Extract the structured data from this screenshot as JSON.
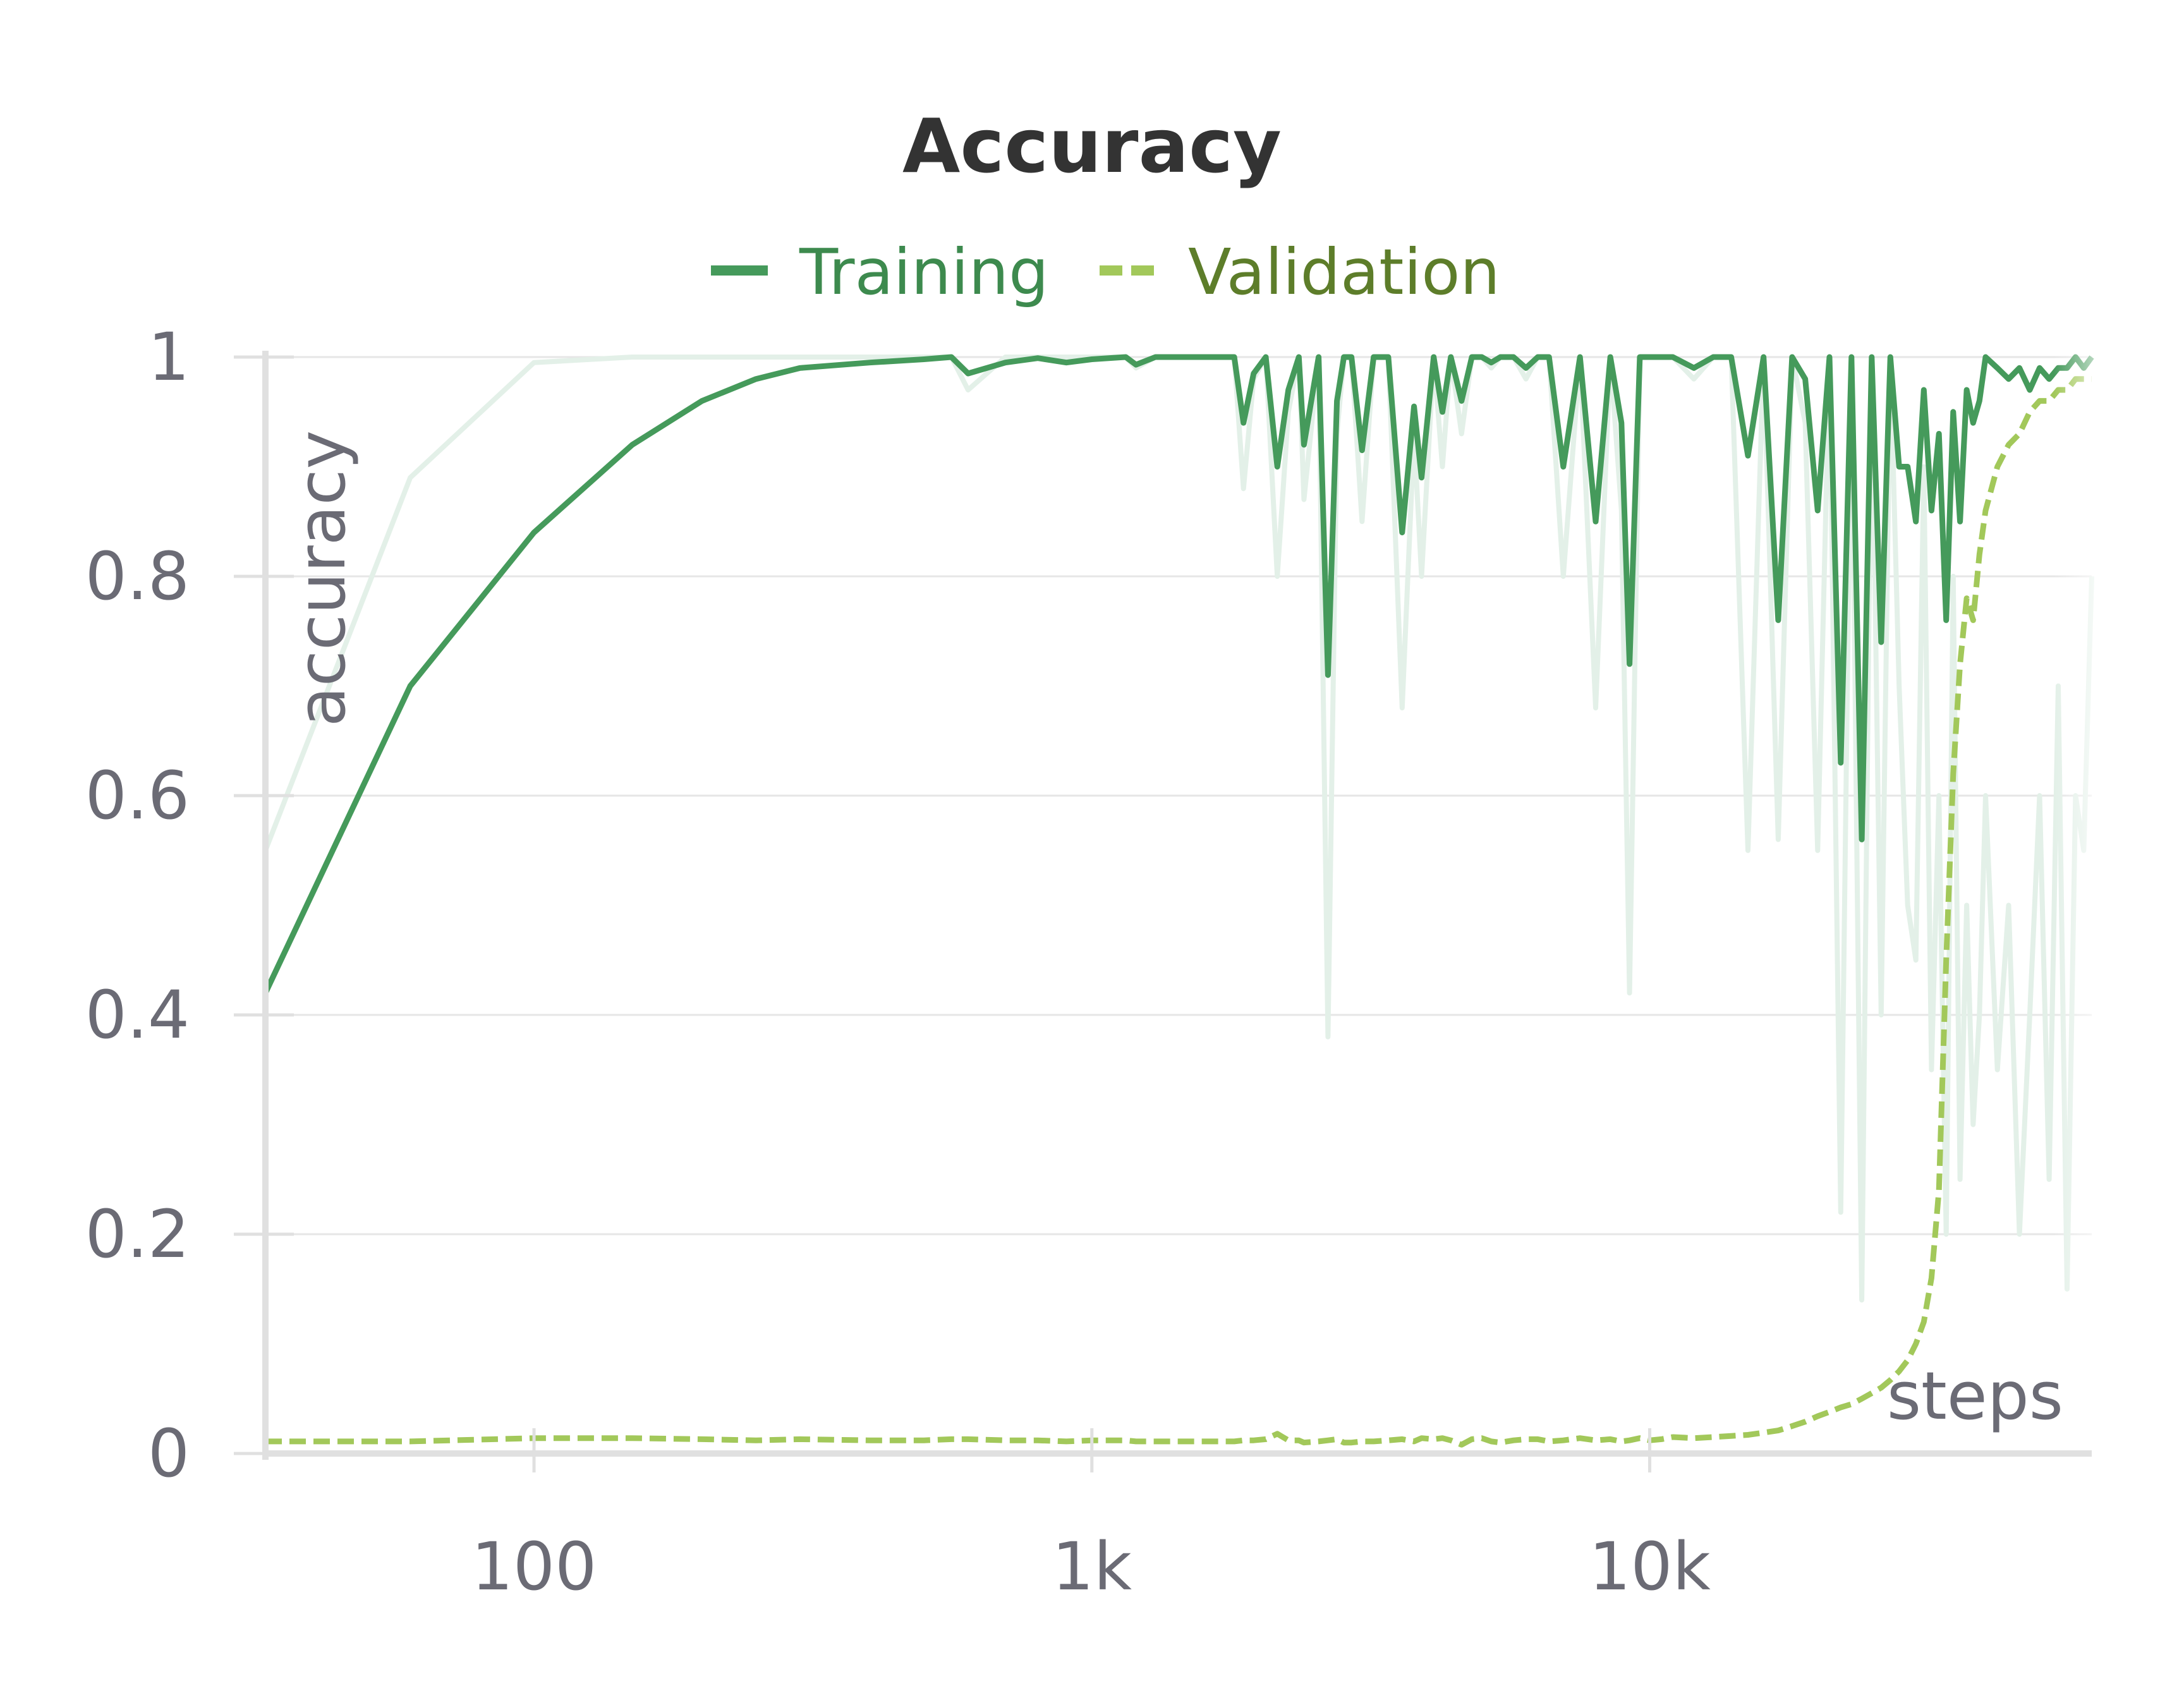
{
  "chart_data": {
    "type": "line",
    "title": "Accuracy",
    "xlabel": "steps",
    "ylabel": "accuracy",
    "xscale": "log",
    "xlim": [
      33,
      62000
    ],
    "ylim": [
      0,
      1
    ],
    "x_ticks": [
      {
        "value": 100,
        "label": "100"
      },
      {
        "value": 1000,
        "label": "1k"
      },
      {
        "value": 10000,
        "label": "10k"
      }
    ],
    "y_ticks": [
      {
        "value": 0,
        "label": "0"
      },
      {
        "value": 0.2,
        "label": "0.2"
      },
      {
        "value": 0.4,
        "label": "0.4"
      },
      {
        "value": 0.6,
        "label": "0.6"
      },
      {
        "value": 0.8,
        "label": "0.8"
      },
      {
        "value": 1,
        "label": "1"
      }
    ],
    "grid": true,
    "legend_position": "top-center",
    "series": [
      {
        "name": "Training",
        "style": "solid",
        "color": "#459a5b",
        "label_color": "#3d8a4e",
        "x": [
          33,
          60,
          100,
          150,
          200,
          250,
          300,
          400,
          500,
          560,
          600,
          700,
          800,
          900,
          1000,
          1150,
          1200,
          1300,
          1500,
          1800,
          1870,
          1950,
          2050,
          2150,
          2250,
          2350,
          2400,
          2550,
          2650,
          2750,
          2830,
          2920,
          3050,
          3200,
          3400,
          3600,
          3780,
          3900,
          4100,
          4250,
          4400,
          4600,
          4800,
          5000,
          5200,
          5400,
          5700,
          6000,
          6300,
          6600,
          7000,
          7500,
          8000,
          8500,
          8900,
          9200,
          9600,
          10000,
          10500,
          11000,
          12000,
          13000,
          14000,
          15000,
          16000,
          17000,
          18000,
          19000,
          20000,
          21000,
          22000,
          23000,
          24000,
          25000,
          26000,
          27000,
          28000,
          29000,
          30000,
          31000,
          32000,
          33000,
          34000,
          35000,
          36000,
          37000,
          38000,
          39000,
          40000,
          42000,
          44000,
          46000,
          48000,
          50000,
          52000,
          54000,
          56000,
          58000,
          60000,
          62000
        ],
        "y": [
          0.42,
          0.7,
          0.84,
          0.92,
          0.96,
          0.98,
          0.99,
          0.995,
          0.998,
          1.0,
          0.985,
          0.995,
          0.999,
          0.995,
          0.998,
          1.0,
          0.993,
          1.0,
          1.0,
          1.0,
          0.94,
          0.985,
          1.0,
          0.9,
          0.97,
          1.0,
          0.92,
          1.0,
          0.71,
          0.96,
          1.0,
          1.0,
          0.915,
          1.0,
          1.0,
          0.84,
          0.955,
          0.89,
          1.0,
          0.95,
          1.0,
          0.96,
          1.0,
          1.0,
          0.995,
          1.0,
          1.0,
          0.99,
          1.0,
          1.0,
          0.9,
          1.0,
          0.85,
          1.0,
          0.94,
          0.72,
          1.0,
          1.0,
          1.0,
          1.0,
          0.99,
          1.0,
          1.0,
          0.91,
          1.0,
          0.76,
          1.0,
          0.98,
          0.86,
          1.0,
          0.63,
          1.0,
          0.56,
          1.0,
          0.74,
          1.0,
          0.9,
          0.9,
          0.85,
          0.97,
          0.86,
          0.93,
          0.76,
          0.95,
          0.85,
          0.97,
          0.94,
          0.96,
          1.0,
          0.99,
          0.98,
          0.99,
          0.97,
          0.99,
          0.98,
          0.99,
          0.99,
          1.0,
          0.99,
          1.0
        ],
        "raw_y": [
          0.55,
          0.89,
          0.995,
          1.0,
          1.0,
          1.0,
          1.0,
          1.0,
          1.0,
          1.0,
          0.97,
          1.0,
          1.0,
          1.0,
          1.0,
          1.0,
          0.99,
          1.0,
          1.0,
          1.0,
          0.88,
          0.98,
          1.0,
          0.8,
          0.95,
          1.0,
          0.87,
          1.0,
          0.38,
          0.93,
          1.0,
          1.0,
          0.85,
          1.0,
          1.0,
          0.68,
          0.93,
          0.8,
          1.0,
          0.9,
          1.0,
          0.93,
          1.0,
          1.0,
          0.99,
          1.0,
          1.0,
          0.98,
          1.0,
          1.0,
          0.8,
          1.0,
          0.68,
          1.0,
          0.86,
          0.42,
          1.0,
          1.0,
          1.0,
          1.0,
          0.98,
          1.0,
          1.0,
          0.55,
          1.0,
          0.56,
          1.0,
          0.94,
          0.55,
          1.0,
          0.22,
          1.0,
          0.14,
          1.0,
          0.4,
          1.0,
          0.7,
          0.5,
          0.45,
          0.9,
          0.35,
          0.6,
          0.2,
          0.8,
          0.25,
          0.5,
          0.3,
          0.4,
          0.6,
          0.35,
          0.5,
          0.2,
          0.4,
          0.6,
          0.25,
          0.7,
          0.15,
          0.6,
          0.55,
          0.8
        ]
      },
      {
        "name": "Validation",
        "style": "dashed",
        "color": "#a2c85a",
        "label_color": "#5d7d2a",
        "x": [
          33,
          60,
          100,
          150,
          200,
          250,
          300,
          400,
          500,
          560,
          600,
          700,
          800,
          900,
          1000,
          1150,
          1200,
          1300,
          1500,
          1800,
          1870,
          1950,
          2050,
          2150,
          2250,
          2350,
          2400,
          2550,
          2650,
          2750,
          2830,
          2920,
          3050,
          3200,
          3400,
          3600,
          3780,
          3900,
          4100,
          4250,
          4400,
          4600,
          4800,
          5000,
          5200,
          5400,
          5700,
          6000,
          6300,
          6600,
          7000,
          7500,
          8000,
          8500,
          8900,
          9200,
          9600,
          10000,
          10500,
          11000,
          12000,
          13000,
          14000,
          15000,
          16000,
          17000,
          18000,
          19000,
          20000,
          21000,
          22000,
          23000,
          24000,
          25000,
          26000,
          27000,
          28000,
          29000,
          30000,
          31000,
          32000,
          33000,
          34000,
          35000,
          36000,
          37000,
          38000,
          39000,
          40000,
          42000,
          44000,
          46000,
          48000,
          50000,
          52000,
          54000,
          56000,
          58000,
          60000,
          62000
        ],
        "y": [
          0.011,
          0.011,
          0.014,
          0.014,
          0.013,
          0.012,
          0.013,
          0.012,
          0.012,
          0.013,
          0.013,
          0.012,
          0.012,
          0.011,
          0.012,
          0.012,
          0.011,
          0.011,
          0.011,
          0.011,
          0.012,
          0.012,
          0.013,
          0.018,
          0.012,
          0.012,
          0.01,
          0.011,
          0.012,
          0.013,
          0.01,
          0.01,
          0.011,
          0.011,
          0.012,
          0.013,
          0.011,
          0.014,
          0.013,
          0.014,
          0.012,
          0.008,
          0.013,
          0.014,
          0.011,
          0.01,
          0.012,
          0.013,
          0.013,
          0.011,
          0.012,
          0.014,
          0.012,
          0.013,
          0.011,
          0.012,
          0.014,
          0.012,
          0.013,
          0.015,
          0.014,
          0.015,
          0.016,
          0.017,
          0.019,
          0.021,
          0.025,
          0.029,
          0.034,
          0.038,
          0.042,
          0.045,
          0.05,
          0.055,
          0.06,
          0.067,
          0.075,
          0.085,
          0.1,
          0.12,
          0.16,
          0.24,
          0.45,
          0.62,
          0.72,
          0.78,
          0.76,
          0.82,
          0.86,
          0.9,
          0.92,
          0.93,
          0.95,
          0.96,
          0.96,
          0.97,
          0.97,
          0.98,
          0.98,
          0.98
        ]
      }
    ]
  }
}
